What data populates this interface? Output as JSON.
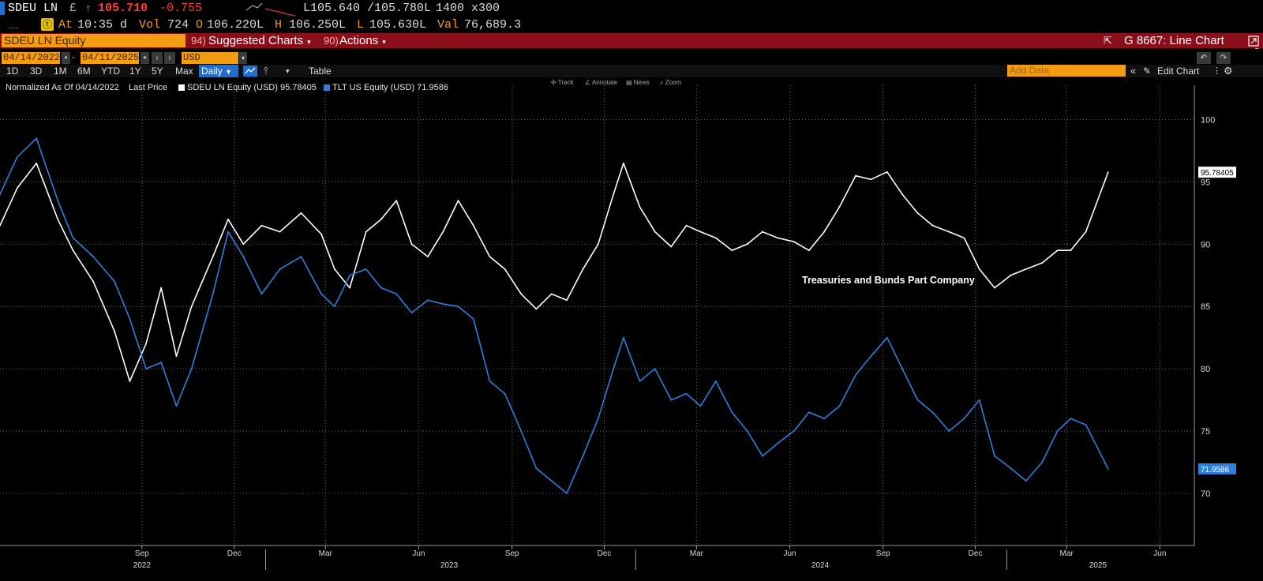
{
  "header": {
    "ticker": "SDEU LN",
    "currency_symbol": "£",
    "arrow": "↑",
    "last": "105.710",
    "change": "-0.755",
    "bid_ask": "L105.640 /105.780L",
    "size": "1400 x300",
    "logo_glyph": "ⓣ",
    "at_label": "At",
    "time": "10:35 d",
    "vol_label": "Vol",
    "vol": "724",
    "open_label": "O",
    "open": "106.220L",
    "high_label": "H",
    "high": "106.250L",
    "low_label": "L",
    "low": "105.630L",
    "val_label": "Val",
    "val": "76,689.3"
  },
  "menubar": {
    "security": "SDEU LN Equity",
    "suggested_num": "94)",
    "suggested": "Suggested Charts",
    "actions_num": "90)",
    "actions": "Actions",
    "function_title": "G 8667: Line Chart"
  },
  "dates": {
    "start": "04/14/2022",
    "end": "04/11/2025",
    "currency": "USD"
  },
  "toolbar": {
    "periods": [
      "1D",
      "3D",
      "1M",
      "6M",
      "YTD",
      "1Y",
      "5Y",
      "Max"
    ],
    "daily": "Daily",
    "table": "Table",
    "add_data_placeholder": "Add Data",
    "edit_chart": "Edit Chart",
    "mini_tools": [
      "Track",
      "Annotate",
      "News",
      "Zoom"
    ]
  },
  "legend": {
    "normalized": "Normalized As Of 04/14/2022",
    "last_price": "Last Price",
    "series1": "SDEU LN Equity (USD) 95.78405",
    "series2": "TLT US Equity (USD) 71.9586"
  },
  "colors": {
    "series1": "#ffffff",
    "series2": "#2f7fdc",
    "amber": "#f39c12",
    "menubar": "#8a0f1b"
  },
  "chart_data": {
    "type": "line",
    "annotation": "Treasuries and Bunds Part Company",
    "y_ticks": [
      70,
      75,
      80,
      85,
      90,
      95,
      100
    ],
    "ylim": [
      66,
      102
    ],
    "x_month_labels": [
      "Sep",
      "Dec",
      "Mar",
      "Jun",
      "Sep",
      "Dec",
      "Mar",
      "Jun",
      "Sep",
      "Dec",
      "Mar",
      "Jun"
    ],
    "x_year_labels": [
      "2022",
      "2023",
      "2024",
      "2025"
    ],
    "grid": true,
    "last_value_labels": [
      "95.78405",
      "71.9586"
    ],
    "series": [
      {
        "name": "SDEU LN Equity (USD)",
        "x": [
          "2022-04-14",
          "2022-05-01",
          "2022-05-20",
          "2022-06-10",
          "2022-06-25",
          "2022-07-15",
          "2022-08-05",
          "2022-08-20",
          "2022-09-05",
          "2022-09-20",
          "2022-10-05",
          "2022-10-20",
          "2022-11-10",
          "2022-11-25",
          "2022-12-10",
          "2022-12-28",
          "2023-01-15",
          "2023-02-05",
          "2023-02-25",
          "2023-03-10",
          "2023-03-25",
          "2023-04-10",
          "2023-04-25",
          "2023-05-10",
          "2023-05-25",
          "2023-06-10",
          "2023-06-25",
          "2023-07-10",
          "2023-07-25",
          "2023-08-10",
          "2023-08-25",
          "2023-09-10",
          "2023-09-25",
          "2023-10-10",
          "2023-10-25",
          "2023-11-10",
          "2023-11-25",
          "2023-12-10",
          "2023-12-20",
          "2024-01-05",
          "2024-01-20",
          "2024-02-05",
          "2024-02-20",
          "2024-03-05",
          "2024-03-20",
          "2024-04-05",
          "2024-04-20",
          "2024-05-05",
          "2024-05-20",
          "2024-06-05",
          "2024-06-20",
          "2024-07-05",
          "2024-07-20",
          "2024-08-05",
          "2024-08-20",
          "2024-09-05",
          "2024-09-20",
          "2024-10-05",
          "2024-10-20",
          "2024-11-05",
          "2024-11-20",
          "2024-12-05",
          "2024-12-20",
          "2025-01-05",
          "2025-01-20",
          "2025-02-05",
          "2025-02-20",
          "2025-03-05",
          "2025-03-20",
          "2025-04-11"
        ],
        "values": [
          91.5,
          94.5,
          96.5,
          92,
          89.5,
          87,
          83,
          79,
          82,
          86.5,
          81,
          85,
          89,
          92,
          90,
          91.5,
          91,
          92.5,
          90.8,
          88,
          86.5,
          91,
          92,
          93.5,
          90,
          89,
          91,
          93.5,
          91.5,
          89,
          88,
          86,
          84.8,
          86,
          85.5,
          88,
          90,
          94,
          96.5,
          93,
          91,
          89.8,
          91.5,
          91,
          90.5,
          89.5,
          90,
          91,
          90.5,
          90.2,
          89.5,
          91,
          93,
          95.5,
          95.2,
          95.8,
          94,
          92.5,
          91.5,
          91,
          90.5,
          88,
          86.5,
          87.5,
          88,
          88.5,
          89.5,
          89.5,
          91,
          95.78
        ]
      },
      {
        "name": "TLT US Equity (USD)",
        "x": [
          "2022-04-14",
          "2022-05-01",
          "2022-05-20",
          "2022-06-10",
          "2022-06-25",
          "2022-07-15",
          "2022-08-05",
          "2022-08-20",
          "2022-09-05",
          "2022-09-20",
          "2022-10-05",
          "2022-10-20",
          "2022-11-10",
          "2022-11-25",
          "2022-12-10",
          "2022-12-28",
          "2023-01-15",
          "2023-02-05",
          "2023-02-25",
          "2023-03-10",
          "2023-03-25",
          "2023-04-10",
          "2023-04-25",
          "2023-05-10",
          "2023-05-25",
          "2023-06-10",
          "2023-06-25",
          "2023-07-10",
          "2023-07-25",
          "2023-08-10",
          "2023-08-25",
          "2023-09-10",
          "2023-09-25",
          "2023-10-10",
          "2023-10-25",
          "2023-11-10",
          "2023-11-25",
          "2023-12-10",
          "2023-12-20",
          "2024-01-05",
          "2024-01-20",
          "2024-02-05",
          "2024-02-20",
          "2024-03-05",
          "2024-03-20",
          "2024-04-05",
          "2024-04-20",
          "2024-05-05",
          "2024-05-20",
          "2024-06-05",
          "2024-06-20",
          "2024-07-05",
          "2024-07-20",
          "2024-08-05",
          "2024-08-20",
          "2024-09-05",
          "2024-09-20",
          "2024-10-05",
          "2024-10-20",
          "2024-11-05",
          "2024-11-20",
          "2024-12-05",
          "2024-12-20",
          "2025-01-05",
          "2025-01-20",
          "2025-02-05",
          "2025-02-20",
          "2025-03-05",
          "2025-03-20",
          "2025-04-11"
        ],
        "values": [
          94,
          97,
          98.5,
          93.5,
          90.5,
          89,
          87,
          84,
          80,
          80.5,
          77,
          80,
          86,
          91,
          89,
          86,
          88,
          89,
          86,
          85,
          87.5,
          88,
          86.5,
          86,
          84.5,
          85.5,
          85.2,
          85,
          84,
          79,
          78,
          75,
          72,
          71,
          70,
          73,
          76,
          80,
          82.5,
          79,
          80,
          77.5,
          78,
          77,
          79,
          76.5,
          75,
          73,
          74,
          75,
          76.5,
          76,
          77,
          79.5,
          81,
          82.5,
          80,
          77.5,
          76.5,
          75,
          76,
          77.5,
          73,
          72,
          71,
          72.5,
          75,
          76,
          75.5,
          71.96
        ]
      }
    ]
  }
}
